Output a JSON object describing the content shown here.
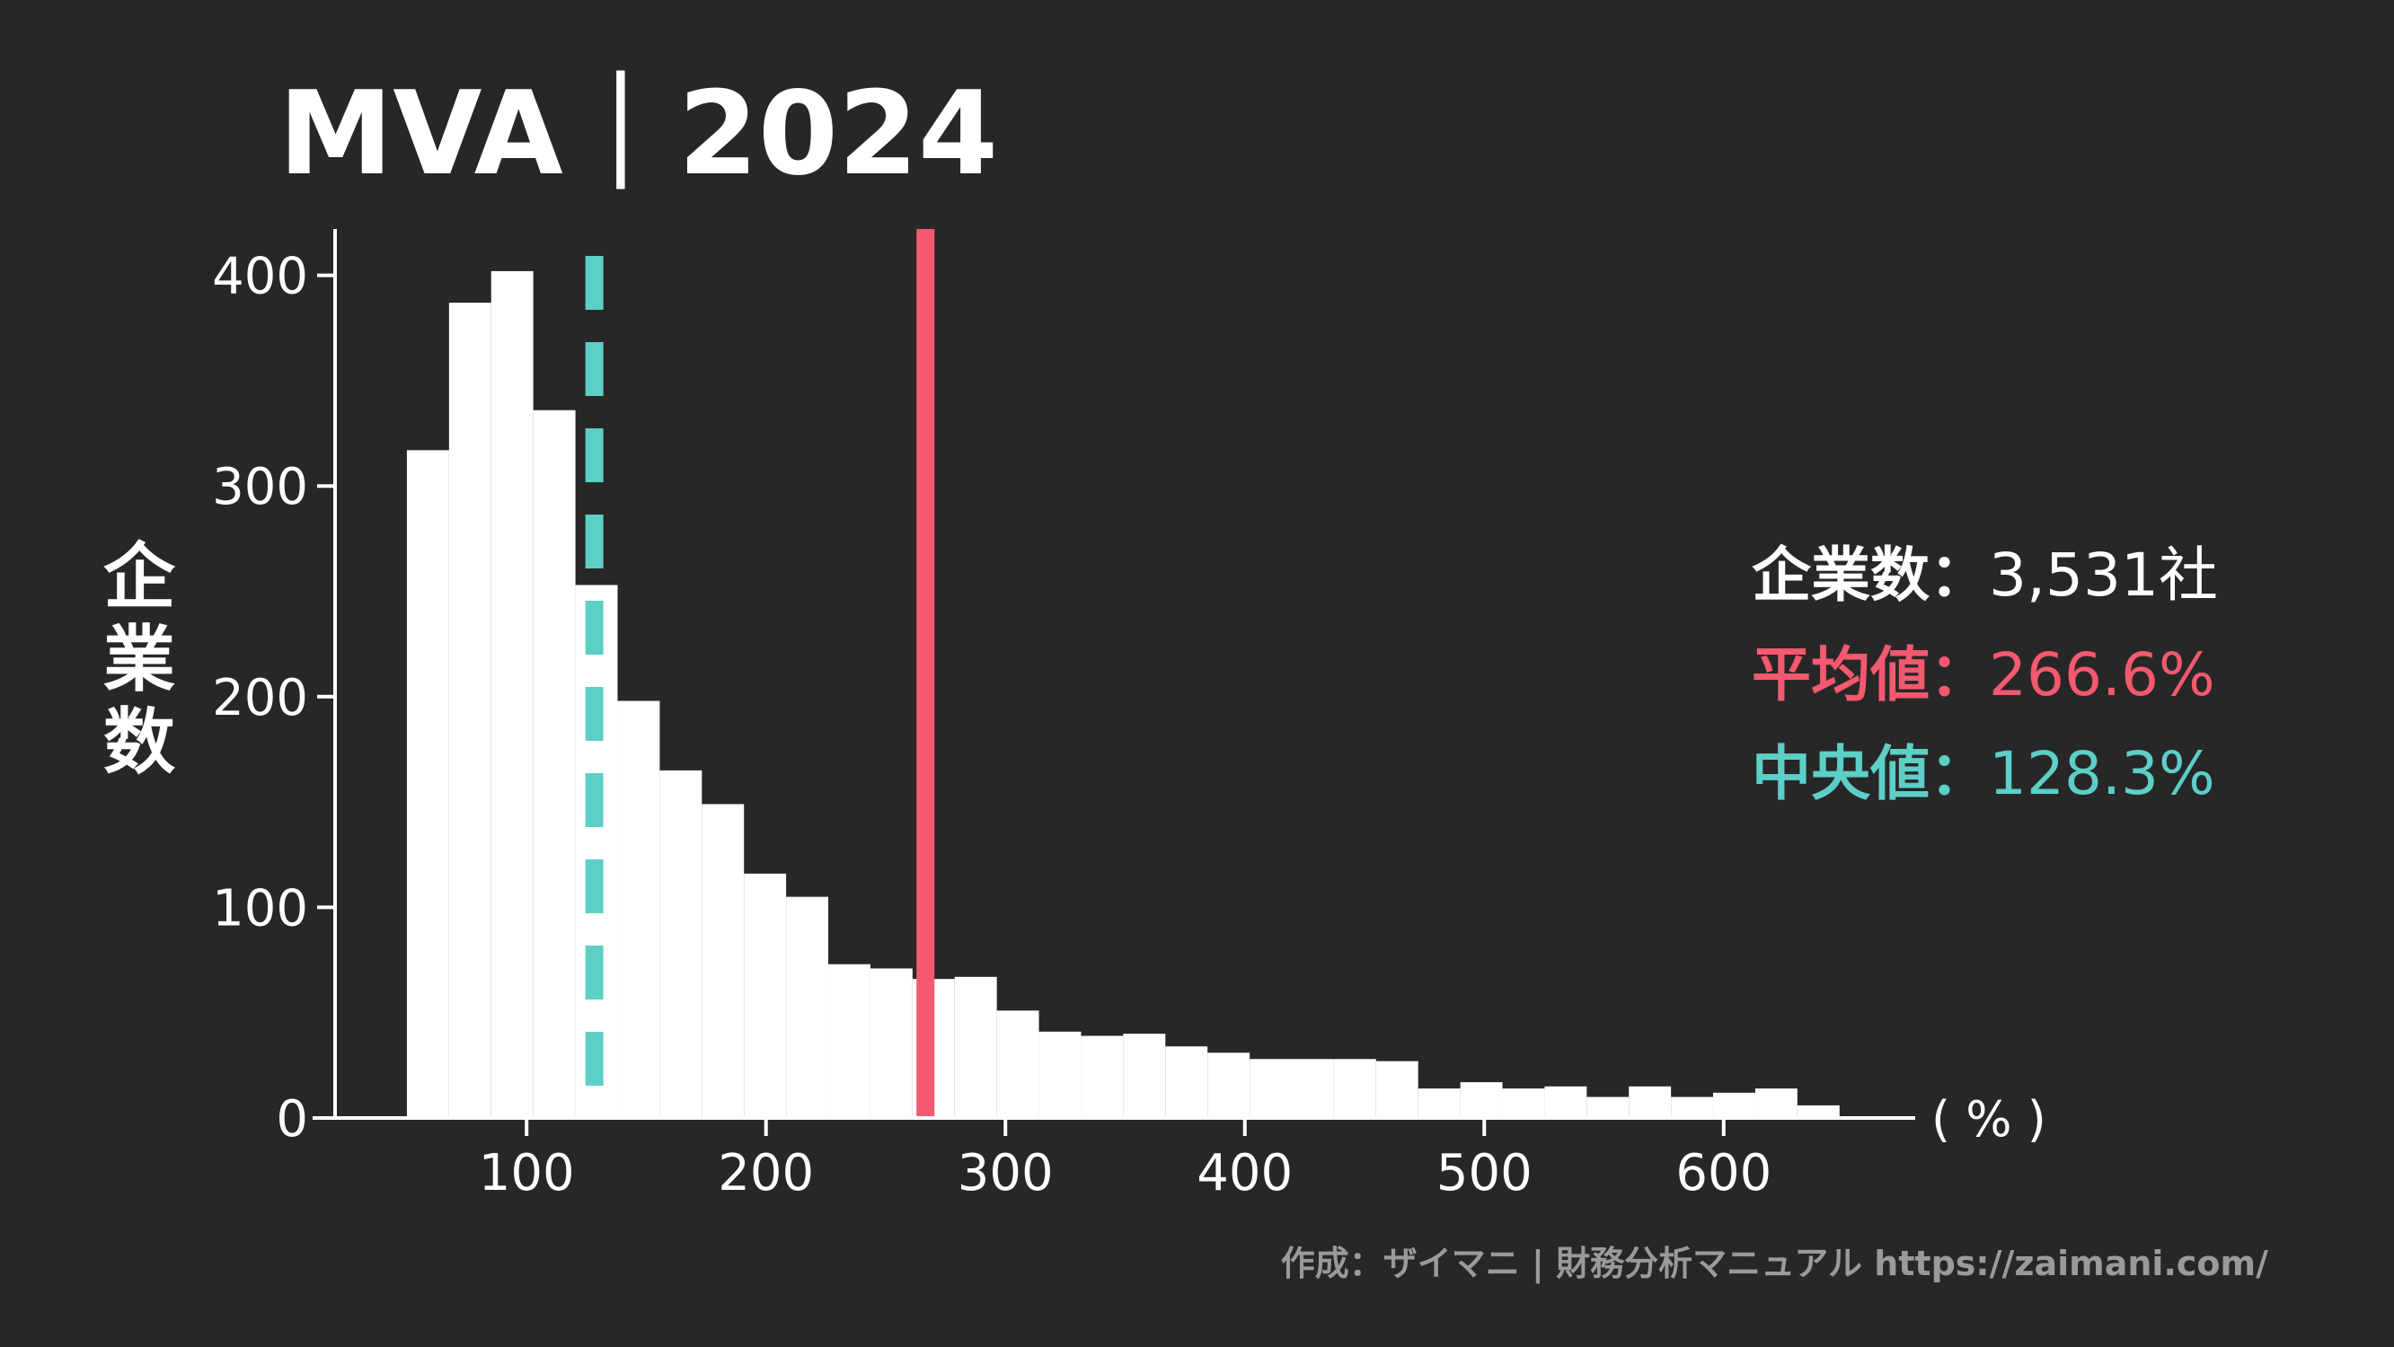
{
  "chart_data": {
    "type": "bar",
    "title": "MVA｜2024",
    "ylabel": "企業数",
    "xunit": "( % )",
    "xlim": [
      20,
      680
    ],
    "ylim": [
      0,
      422
    ],
    "xticks": [
      100,
      200,
      300,
      400,
      500,
      600
    ],
    "yticks": [
      0,
      100,
      200,
      300,
      400
    ],
    "bin_edges": [
      50,
      67.6,
      85.2,
      102.8,
      120.4,
      138,
      155.6,
      173.2,
      190.8,
      208.4,
      226,
      243.6,
      261.2,
      278.8,
      296.4,
      314,
      331.6,
      349.2,
      366.8,
      384.4,
      402,
      419.6,
      437.2,
      454.8,
      472.4,
      490,
      507.6,
      525.2,
      542.8,
      560.4,
      578,
      595.6,
      613.2,
      630.8,
      648.4
    ],
    "values": [
      317,
      387,
      402,
      336,
      253,
      198,
      165,
      149,
      116,
      105,
      73,
      71,
      66,
      67,
      51,
      41,
      39,
      40,
      34,
      31,
      28,
      28,
      28,
      27,
      14,
      17,
      14,
      15,
      10,
      15,
      10,
      12,
      14,
      6
    ],
    "series": [
      {
        "values": "values"
      }
    ],
    "mean": {
      "label": "平均値",
      "value": 266.6,
      "text": "266.6%",
      "color": "#f4596f"
    },
    "median": {
      "label": "中央値",
      "value": 128.3,
      "text": "128.3%",
      "color": "#5ccfc7"
    },
    "count": {
      "label": "企業数",
      "text": "3,531社"
    },
    "colors": {
      "background": "#272727",
      "bars": "#ffffff",
      "axis": "#ffffff",
      "credit": "#9a9a9a"
    }
  },
  "stats": {
    "count_label": "企業数",
    "count_value": "3,531社",
    "mean_label": "平均値",
    "mean_value": "266.6%",
    "median_label": "中央値",
    "median_value": "128.3%",
    "separator": "："
  },
  "credit": "作成：ザイマニ | 財務分析マニュアル https://zaimani.com/"
}
